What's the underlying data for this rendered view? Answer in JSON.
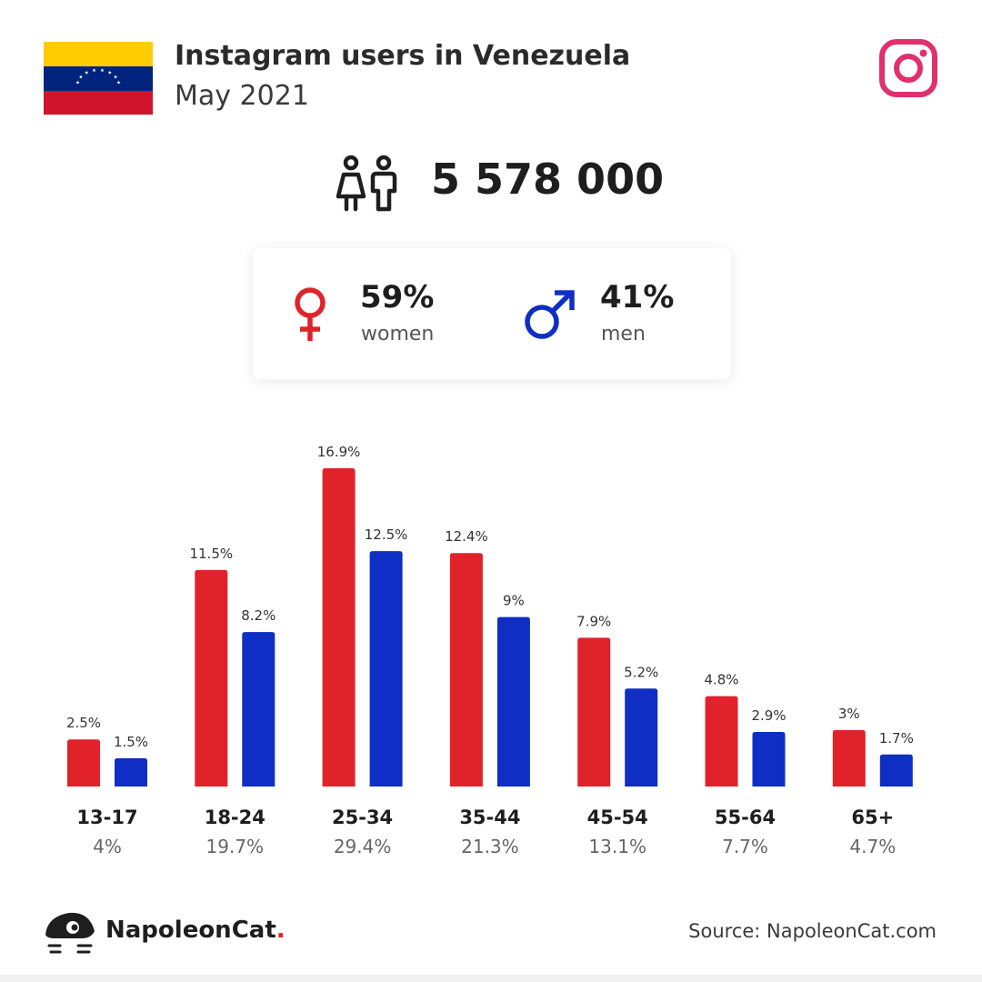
{
  "header": {
    "title": "Instagram users in Venezuela",
    "subtitle": "May 2021"
  },
  "icons": {
    "flag": "venezuela-flag-icon",
    "social": "instagram-icon",
    "users": "users-icon",
    "female": "female-symbol-icon",
    "male": "male-symbol-icon",
    "logo": "napoleoncat-logo"
  },
  "total_users": "5 578 000",
  "gender": {
    "women": {
      "pct": "59%",
      "label": "women"
    },
    "men": {
      "pct": "41%",
      "label": "men"
    }
  },
  "colors": {
    "women": "#e0222a",
    "men": "#0f2ec4",
    "flag_yellow": "#ffcc00",
    "flag_blue": "#00247d",
    "flag_red": "#cf142b",
    "instagram": "#e1306c"
  },
  "chart_data": {
    "type": "bar",
    "categories": [
      "13-17",
      "18-24",
      "25-34",
      "35-44",
      "45-54",
      "55-64",
      "65+"
    ],
    "category_totals": [
      "4%",
      "19.7%",
      "29.4%",
      "21.3%",
      "13.1%",
      "7.7%",
      "4.7%"
    ],
    "series": [
      {
        "name": "women",
        "values": [
          2.5,
          11.5,
          16.9,
          12.4,
          7.9,
          4.8,
          3
        ],
        "labels": [
          "2.5%",
          "11.5%",
          "16.9%",
          "12.4%",
          "7.9%",
          "4.8%",
          "3%"
        ]
      },
      {
        "name": "men",
        "values": [
          1.5,
          8.2,
          12.5,
          9,
          5.2,
          2.9,
          1.7
        ],
        "labels": [
          "1.5%",
          "8.2%",
          "12.5%",
          "9%",
          "5.2%",
          "2.9%",
          "1.7%"
        ]
      }
    ],
    "unit": "%",
    "ylim": [
      0,
      16.9
    ],
    "grid": false,
    "legend": "none"
  },
  "footer": {
    "brand": "NapoleonCat",
    "brand_dot": ".",
    "source": "Source: NapoleonCat.com"
  }
}
